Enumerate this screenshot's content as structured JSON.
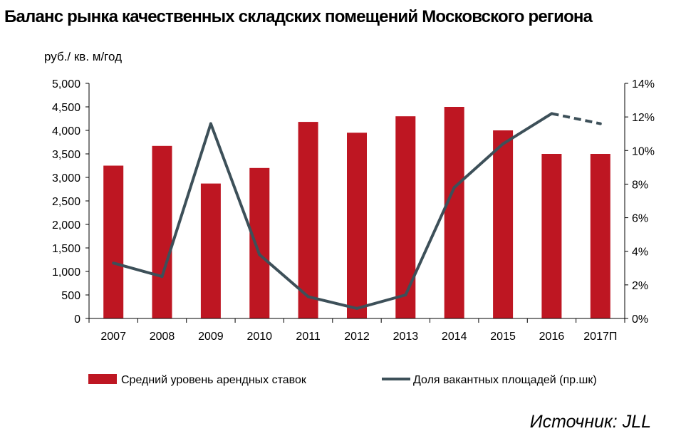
{
  "chart_data": {
    "type": "bar+line",
    "title": "Баланс рынка качественных складских помещений Московского региона",
    "ylabel": "руб./ кв. м/год",
    "ylabel_right": "",
    "categories": [
      "2007",
      "2008",
      "2009",
      "2010",
      "2011",
      "2012",
      "2013",
      "2014",
      "2015",
      "2016",
      "2017П"
    ],
    "y_left_ticks": [
      "0",
      "500",
      "1,000",
      "1,500",
      "2,000",
      "2,500",
      "3,000",
      "3,500",
      "4,000",
      "4,500",
      "5,000"
    ],
    "y_right_ticks": [
      "0%",
      "2%",
      "4%",
      "6%",
      "8%",
      "10%",
      "12%",
      "14%"
    ],
    "ylim_left": [
      0,
      5000
    ],
    "ylim_right": [
      0,
      14
    ],
    "grid": false,
    "legend_position": "bottom",
    "series": [
      {
        "name": "Средний уровень арендных ставок",
        "type": "bar",
        "axis": "left",
        "color": "#be1622",
        "values": [
          3250,
          3670,
          2870,
          3200,
          4180,
          3950,
          4300,
          4500,
          4000,
          3500,
          3500
        ]
      },
      {
        "name": "Доля вакантных площадей (пр.шк)",
        "type": "line",
        "axis": "right",
        "color": "#3d5059",
        "values": [
          3.3,
          2.5,
          11.6,
          3.8,
          1.3,
          0.6,
          1.4,
          7.8,
          10.4,
          12.2,
          11.6
        ],
        "dashed_from_index": 9
      }
    ]
  },
  "source_text": "Источник: JLL"
}
